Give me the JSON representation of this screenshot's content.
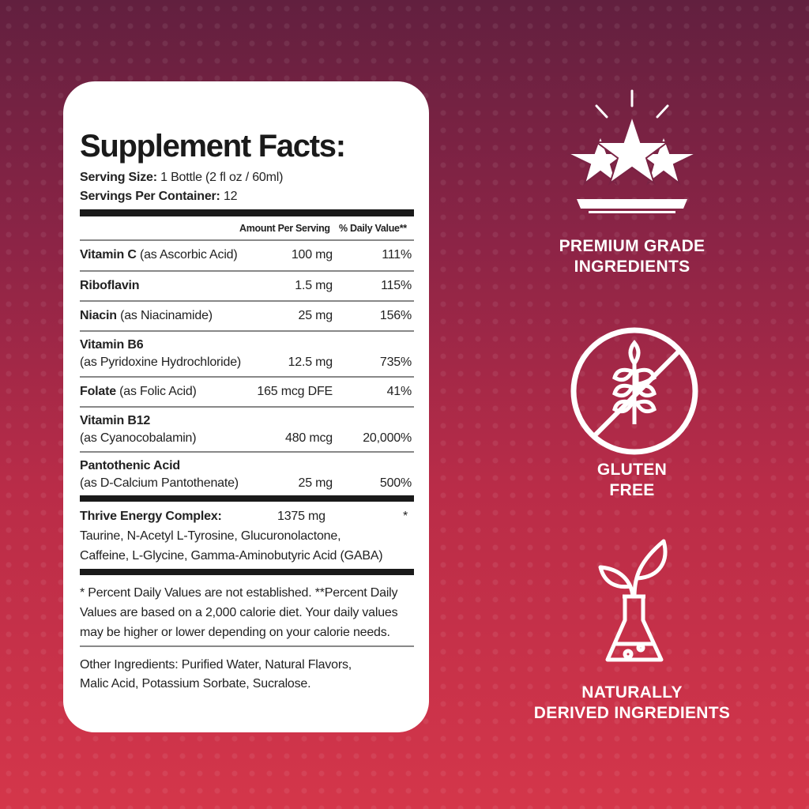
{
  "panel": {
    "title": "Supplement Facts:",
    "serving_size_label": "Serving Size:",
    "serving_size_value": "1 Bottle (2 fl oz / 60ml)",
    "servings_label": "Servings Per Container:",
    "servings_value": "12",
    "col_amount": "Amount Per Serving",
    "col_dv": "% Daily Value**",
    "rows": [
      {
        "name": "Vitamin C",
        "detail": "(as Ascorbic Acid)",
        "amount": "100 mg",
        "dv": "111%"
      },
      {
        "name": "Riboflavin",
        "detail": "",
        "amount": "1.5 mg",
        "dv": "115%"
      },
      {
        "name": "Niacin",
        "detail": "(as Niacinamide)",
        "amount": "25 mg",
        "dv": "156%"
      },
      {
        "name": "Vitamin B6",
        "detail": "(as Pyridoxine Hydrochloride)",
        "amount": "12.5 mg",
        "dv": "735%"
      },
      {
        "name": "Folate",
        "detail": "(as Folic Acid)",
        "amount": "165 mcg DFE",
        "dv": "41%"
      },
      {
        "name": "Vitamin B12",
        "detail": "(as Cyanocobalamin)",
        "amount": "480 mcg",
        "dv": "20,000%"
      },
      {
        "name": "Pantothenic Acid",
        "detail": "(as D-Calcium Pantothenate)",
        "amount": "25 mg",
        "dv": "500%"
      }
    ],
    "complex": {
      "name": "Thrive Energy Complex:",
      "amount": "1375 mg",
      "dv": "*",
      "line1": "Taurine, N-Acetyl L-Tyrosine, Glucuronolactone,",
      "line2": "Caffeine, L-Glycine, Gamma-Aminobutyric Acid (GABA)"
    },
    "footnote": [
      "* Percent Daily Values are not established. **Percent Daily",
      "Values are based on a 2,000 calorie diet. Your daily values",
      "may be higher or lower depending on your calorie needs."
    ],
    "other": [
      "Other Ingredients: Purified Water, Natural Flavors,",
      "Malic Acid, Potassium Sorbate, Sucralose."
    ]
  },
  "badges": [
    {
      "icon": "stars-icon",
      "line1": "PREMIUM GRADE",
      "line2": "INGREDIENTS"
    },
    {
      "icon": "gluten-free-icon",
      "line1": "GLUTEN",
      "line2": "FREE"
    },
    {
      "icon": "plant-flask-icon",
      "line1": "NATURALLY",
      "line2": "DERIVED INGREDIENTS"
    }
  ],
  "colors": {
    "bg_top": "#62203f",
    "bg_bottom": "#d4364a",
    "card": "#ffffff",
    "text": "#1a1a1a"
  }
}
